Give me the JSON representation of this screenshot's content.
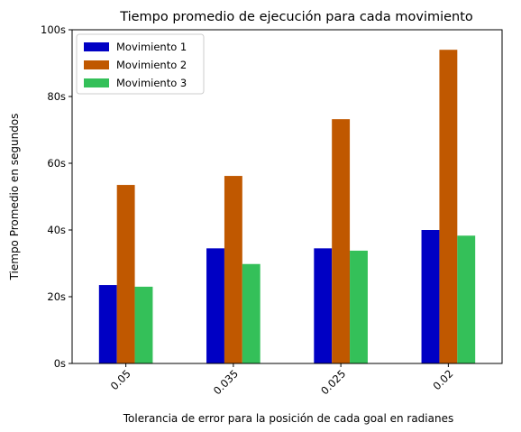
{
  "chart_data": {
    "type": "bar",
    "title": "Tiempo promedio de ejecución para cada movimiento",
    "xlabel": "Tolerancia de error para la posición de cada goal en radianes",
    "ylabel": "Tiempo Promedio en segundos",
    "categories": [
      "0.05",
      "0.035",
      "0.025",
      "0.02"
    ],
    "series": [
      {
        "name": "Movimiento 1",
        "color": "#0000c4",
        "values": [
          23.5,
          34.5,
          34.5,
          40.0
        ]
      },
      {
        "name": "Movimiento 2",
        "color": "#c05800",
        "values": [
          53.5,
          56.2,
          73.2,
          94.0
        ]
      },
      {
        "name": "Movimiento 3",
        "color": "#34c059",
        "values": [
          23.0,
          29.8,
          33.8,
          38.3
        ]
      }
    ],
    "ylim": [
      0,
      100
    ],
    "yticks": [
      0,
      20,
      40,
      60,
      80,
      100
    ],
    "ytick_labels": [
      "0s",
      "20s",
      "40s",
      "60s",
      "80s",
      "100s"
    ],
    "grid": false,
    "legend": "top-left"
  }
}
